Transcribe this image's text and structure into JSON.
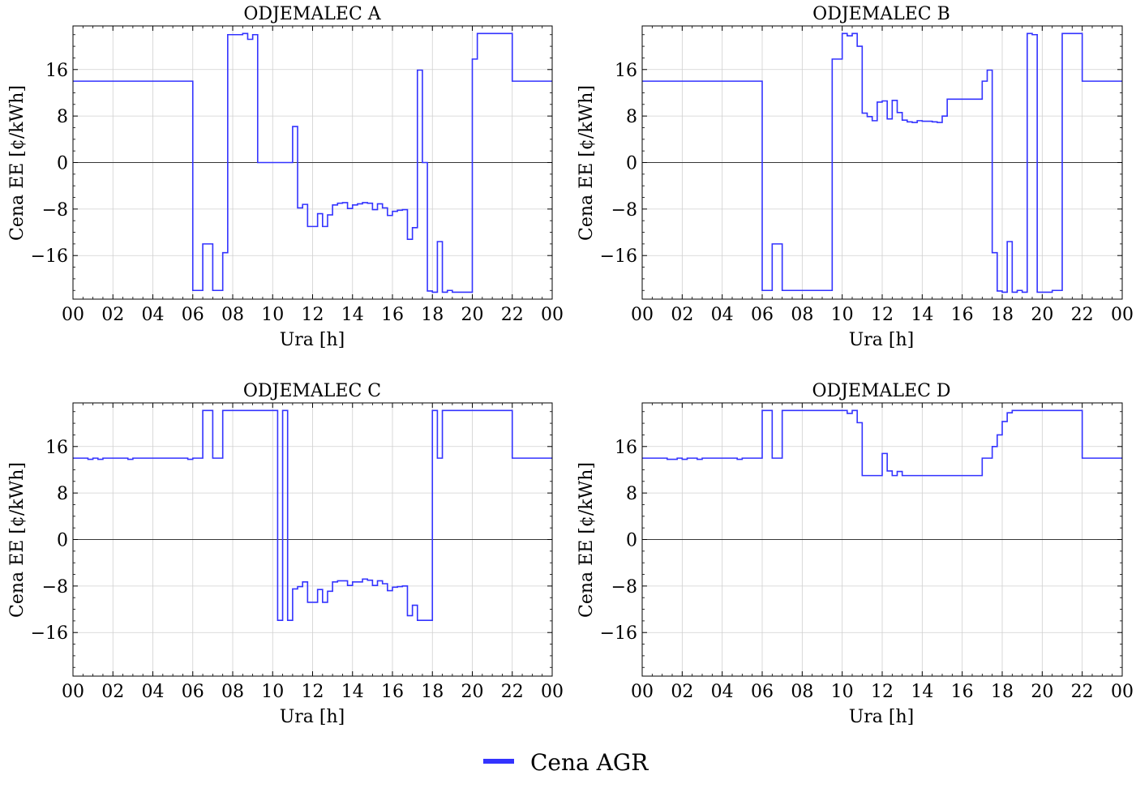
{
  "legend": {
    "label": "Cena AGR",
    "color": "#3333ff"
  },
  "chart_data": [
    {
      "type": "line",
      "drawstyle": "step",
      "title": "ODJEMALEC A",
      "xlabel": "Ura [h]",
      "ylabel": "Cena EE [¢/kWh]",
      "xlim": [
        0,
        24
      ],
      "ylim": [
        -23.5,
        23.5
      ],
      "xticks": [
        "00",
        "02",
        "04",
        "06",
        "08",
        "10",
        "12",
        "14",
        "16",
        "18",
        "20",
        "22",
        "00"
      ],
      "yticks": [
        -16,
        -8,
        0,
        8,
        16
      ],
      "grid": true,
      "zero_line": true,
      "series": [
        {
          "name": "Cena AGR",
          "color": "#3333ff",
          "x": [
            0,
            6,
            6.5,
            7,
            7.5,
            7.75,
            8,
            8.5,
            8.75,
            9,
            9.25,
            9.5,
            10,
            10.5,
            11,
            11.25,
            11.5,
            11.75,
            12,
            12.25,
            12.5,
            12.75,
            13,
            13.25,
            13.5,
            13.75,
            14,
            14.25,
            14.5,
            14.75,
            15,
            15.25,
            15.5,
            15.75,
            16,
            16.25,
            16.5,
            16.75,
            17,
            17.25,
            17.5,
            17.75,
            18,
            18.25,
            18.5,
            18.75,
            19,
            19.25,
            19.5,
            19.75,
            20,
            20.25,
            20.5,
            22,
            24
          ],
          "y": [
            14,
            -22,
            -14,
            -22,
            -15.5,
            22,
            22,
            22.2,
            21.2,
            22,
            0,
            0,
            0,
            0,
            6.2,
            -7.8,
            -7.2,
            -11,
            -11,
            -8.8,
            -11,
            -9,
            -7.3,
            -7,
            -6.9,
            -7.9,
            -7.3,
            -7.1,
            -6.9,
            -7,
            -8.1,
            -7.1,
            -7.8,
            -9.1,
            -8.4,
            -8.2,
            -8.1,
            -13.2,
            -11.2,
            15.9,
            0,
            -22.1,
            -22.3,
            -13.6,
            -22.3,
            -22,
            -22.3,
            -22.3,
            -22.3,
            -22.3,
            17.8,
            22.2,
            22.2,
            14,
            14
          ]
        }
      ]
    },
    {
      "type": "line",
      "drawstyle": "step",
      "title": "ODJEMALEC B",
      "xlabel": "Ura [h]",
      "ylabel": "Cena EE [¢/kWh]",
      "xlim": [
        0,
        24
      ],
      "ylim": [
        -23.5,
        23.5
      ],
      "xticks": [
        "00",
        "02",
        "04",
        "06",
        "08",
        "10",
        "12",
        "14",
        "16",
        "18",
        "20",
        "22",
        "00"
      ],
      "yticks": [
        -16,
        -8,
        0,
        8,
        16
      ],
      "grid": true,
      "zero_line": true,
      "series": [
        {
          "name": "Cena AGR",
          "color": "#3333ff",
          "x": [
            0,
            6,
            6.5,
            7,
            9.25,
            9.5,
            10,
            10.25,
            10.5,
            10.75,
            11,
            11.25,
            11.5,
            11.75,
            12,
            12.25,
            12.5,
            12.75,
            13,
            13.25,
            13.5,
            13.75,
            14,
            14.25,
            14.5,
            14.75,
            15,
            15.25,
            15.5,
            17,
            17.25,
            17.5,
            17.75,
            18,
            18.25,
            18.5,
            18.75,
            19,
            19.25,
            19.5,
            19.75,
            20,
            20.25,
            20.5,
            21,
            22,
            24
          ],
          "y": [
            14,
            -22,
            -14,
            -22,
            -22,
            17.8,
            22.2,
            21.8,
            22.2,
            20,
            8.5,
            7.9,
            7.2,
            10.4,
            10.6,
            7.5,
            10.7,
            8.6,
            7.3,
            7,
            6.9,
            7.2,
            7.1,
            7.1,
            7,
            6.9,
            8,
            10.9,
            10.9,
            14,
            15.9,
            -15.5,
            -22.1,
            -22.3,
            -13.6,
            -22.3,
            -22,
            -22.3,
            22.2,
            22,
            -22.3,
            -22.3,
            -22.3,
            -22,
            22.2,
            14,
            14
          ]
        }
      ]
    },
    {
      "type": "line",
      "drawstyle": "step",
      "title": "ODJEMALEC C",
      "xlabel": "Ura [h]",
      "ylabel": "Cena EE [¢/kWh]",
      "xlim": [
        0,
        24
      ],
      "ylim": [
        -23.5,
        23.5
      ],
      "xticks": [
        "00",
        "02",
        "04",
        "06",
        "08",
        "10",
        "12",
        "14",
        "16",
        "18",
        "20",
        "22",
        "00"
      ],
      "yticks": [
        -16,
        -8,
        0,
        8,
        16
      ],
      "grid": true,
      "zero_line": true,
      "series": [
        {
          "name": "Cena AGR",
          "color": "#3333ff",
          "x": [
            0,
            0.75,
            1,
            1.25,
            1.5,
            2,
            2.5,
            2.75,
            3,
            4.5,
            5.5,
            5.75,
            6,
            6.5,
            7,
            7.5,
            10,
            10.25,
            10.5,
            10.75,
            11,
            11.25,
            11.5,
            11.75,
            12,
            12.25,
            12.5,
            12.75,
            13,
            13.25,
            13.5,
            13.75,
            14,
            14.25,
            14.5,
            14.75,
            15,
            15.25,
            15.5,
            15.75,
            16,
            16.25,
            16.5,
            16.75,
            17,
            17.25,
            17.5,
            17.75,
            18,
            18.25,
            18.5,
            18.75,
            19,
            22,
            24
          ],
          "y": [
            14,
            13.8,
            14,
            13.8,
            14,
            14,
            14,
            13.8,
            14,
            14,
            14,
            13.8,
            14,
            22.2,
            14,
            22.2,
            22.2,
            -13.9,
            22.2,
            -13.9,
            -8.5,
            -8.1,
            -7.3,
            -10.8,
            -10.8,
            -8.6,
            -10.8,
            -8.9,
            -7.3,
            -7.1,
            -7.1,
            -7.9,
            -7.3,
            -7.3,
            -6.8,
            -7,
            -7.9,
            -7.1,
            -7.6,
            -8.8,
            -8.2,
            -8.1,
            -8,
            -13.1,
            -11.3,
            -13.9,
            -13.9,
            -13.9,
            22.2,
            14,
            22.2,
            22.2,
            22.2,
            14,
            14
          ]
        }
      ]
    },
    {
      "type": "line",
      "drawstyle": "step",
      "title": "ODJEMALEC D",
      "xlabel": "Ura [h]",
      "ylabel": "Cena EE [¢/kWh]",
      "xlim": [
        0,
        24
      ],
      "ylim": [
        -23.5,
        23.5
      ],
      "xticks": [
        "00",
        "02",
        "04",
        "06",
        "08",
        "10",
        "12",
        "14",
        "16",
        "18",
        "20",
        "22",
        "00"
      ],
      "yticks": [
        -16,
        -8,
        0,
        8,
        16
      ],
      "grid": true,
      "zero_line": true,
      "series": [
        {
          "name": "Cena AGR",
          "color": "#3333ff",
          "x": [
            0,
            1.25,
            1.75,
            2,
            2.25,
            2.5,
            2.75,
            3,
            4.75,
            5,
            6,
            6.5,
            7,
            9.25,
            10,
            10.25,
            10.5,
            10.75,
            11,
            11.75,
            12,
            12.25,
            12.5,
            12.75,
            13,
            17,
            17.25,
            17.5,
            17.75,
            18,
            18.25,
            18.5,
            18.75,
            19,
            22,
            24
          ],
          "y": [
            14,
            13.8,
            14,
            13.8,
            14,
            14,
            13.8,
            14,
            13.8,
            14,
            22.2,
            14,
            22.2,
            22.2,
            22.2,
            21.7,
            22.2,
            20.1,
            11,
            11,
            14.8,
            11.8,
            11,
            11.7,
            11,
            14,
            14,
            16,
            18,
            20.3,
            21.8,
            22.2,
            22.2,
            22.2,
            14,
            14
          ]
        }
      ]
    }
  ]
}
